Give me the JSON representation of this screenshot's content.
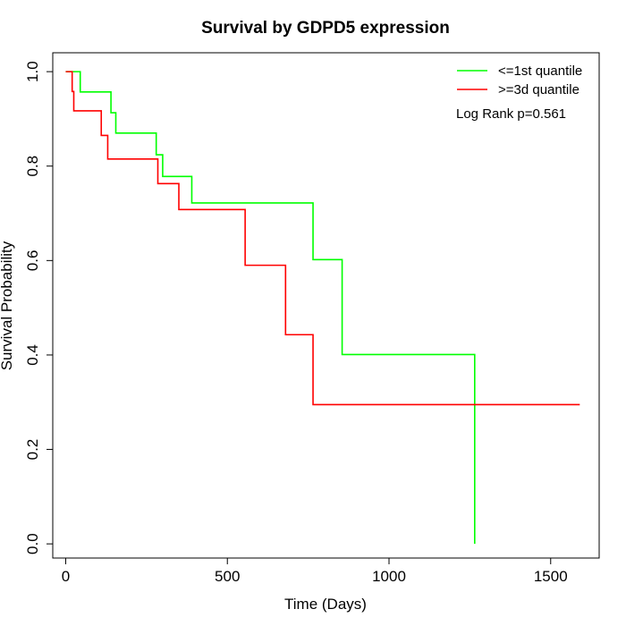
{
  "chart_data": {
    "type": "line",
    "subtype": "kaplan-meier step",
    "title": "Survival by GDPD5 expression",
    "xlabel": "Time (Days)",
    "ylabel": "Survival Probability",
    "xlim": [
      -40,
      1650
    ],
    "ylim": [
      -0.03,
      1.04
    ],
    "x_ticks": [
      0,
      500,
      1000,
      1500
    ],
    "x_tick_labels": [
      "0",
      "500",
      "1000",
      "1500"
    ],
    "y_ticks": [
      0.0,
      0.2,
      0.4,
      0.6,
      0.8,
      1.0
    ],
    "y_tick_labels": [
      "0.0",
      "0.2",
      "0.4",
      "0.6",
      "0.8",
      "1.0"
    ],
    "grid": false,
    "legend_position": "top-right",
    "annotation": "Log Rank p=0.561",
    "series": [
      {
        "name": "<=1st quantile",
        "color": "#00ff00",
        "points": [
          [
            0,
            1.0
          ],
          [
            45,
            1.0
          ],
          [
            45,
            0.957
          ],
          [
            140,
            0.957
          ],
          [
            140,
            0.913
          ],
          [
            155,
            0.913
          ],
          [
            155,
            0.87
          ],
          [
            280,
            0.87
          ],
          [
            280,
            0.824
          ],
          [
            300,
            0.824
          ],
          [
            300,
            0.778
          ],
          [
            390,
            0.778
          ],
          [
            390,
            0.722
          ],
          [
            765,
            0.722
          ],
          [
            765,
            0.602
          ],
          [
            855,
            0.602
          ],
          [
            855,
            0.401
          ],
          [
            1265,
            0.401
          ],
          [
            1265,
            0.0
          ]
        ]
      },
      {
        "name": ">=3d quantile",
        "color": "#ff0000",
        "points": [
          [
            0,
            1.0
          ],
          [
            20,
            1.0
          ],
          [
            20,
            0.958
          ],
          [
            25,
            0.958
          ],
          [
            25,
            0.917
          ],
          [
            110,
            0.917
          ],
          [
            110,
            0.865
          ],
          [
            130,
            0.865
          ],
          [
            130,
            0.815
          ],
          [
            285,
            0.815
          ],
          [
            285,
            0.763
          ],
          [
            350,
            0.763
          ],
          [
            350,
            0.708
          ],
          [
            555,
            0.708
          ],
          [
            555,
            0.59
          ],
          [
            680,
            0.59
          ],
          [
            680,
            0.443
          ],
          [
            765,
            0.443
          ],
          [
            765,
            0.295
          ],
          [
            1590,
            0.295
          ]
        ]
      }
    ]
  }
}
